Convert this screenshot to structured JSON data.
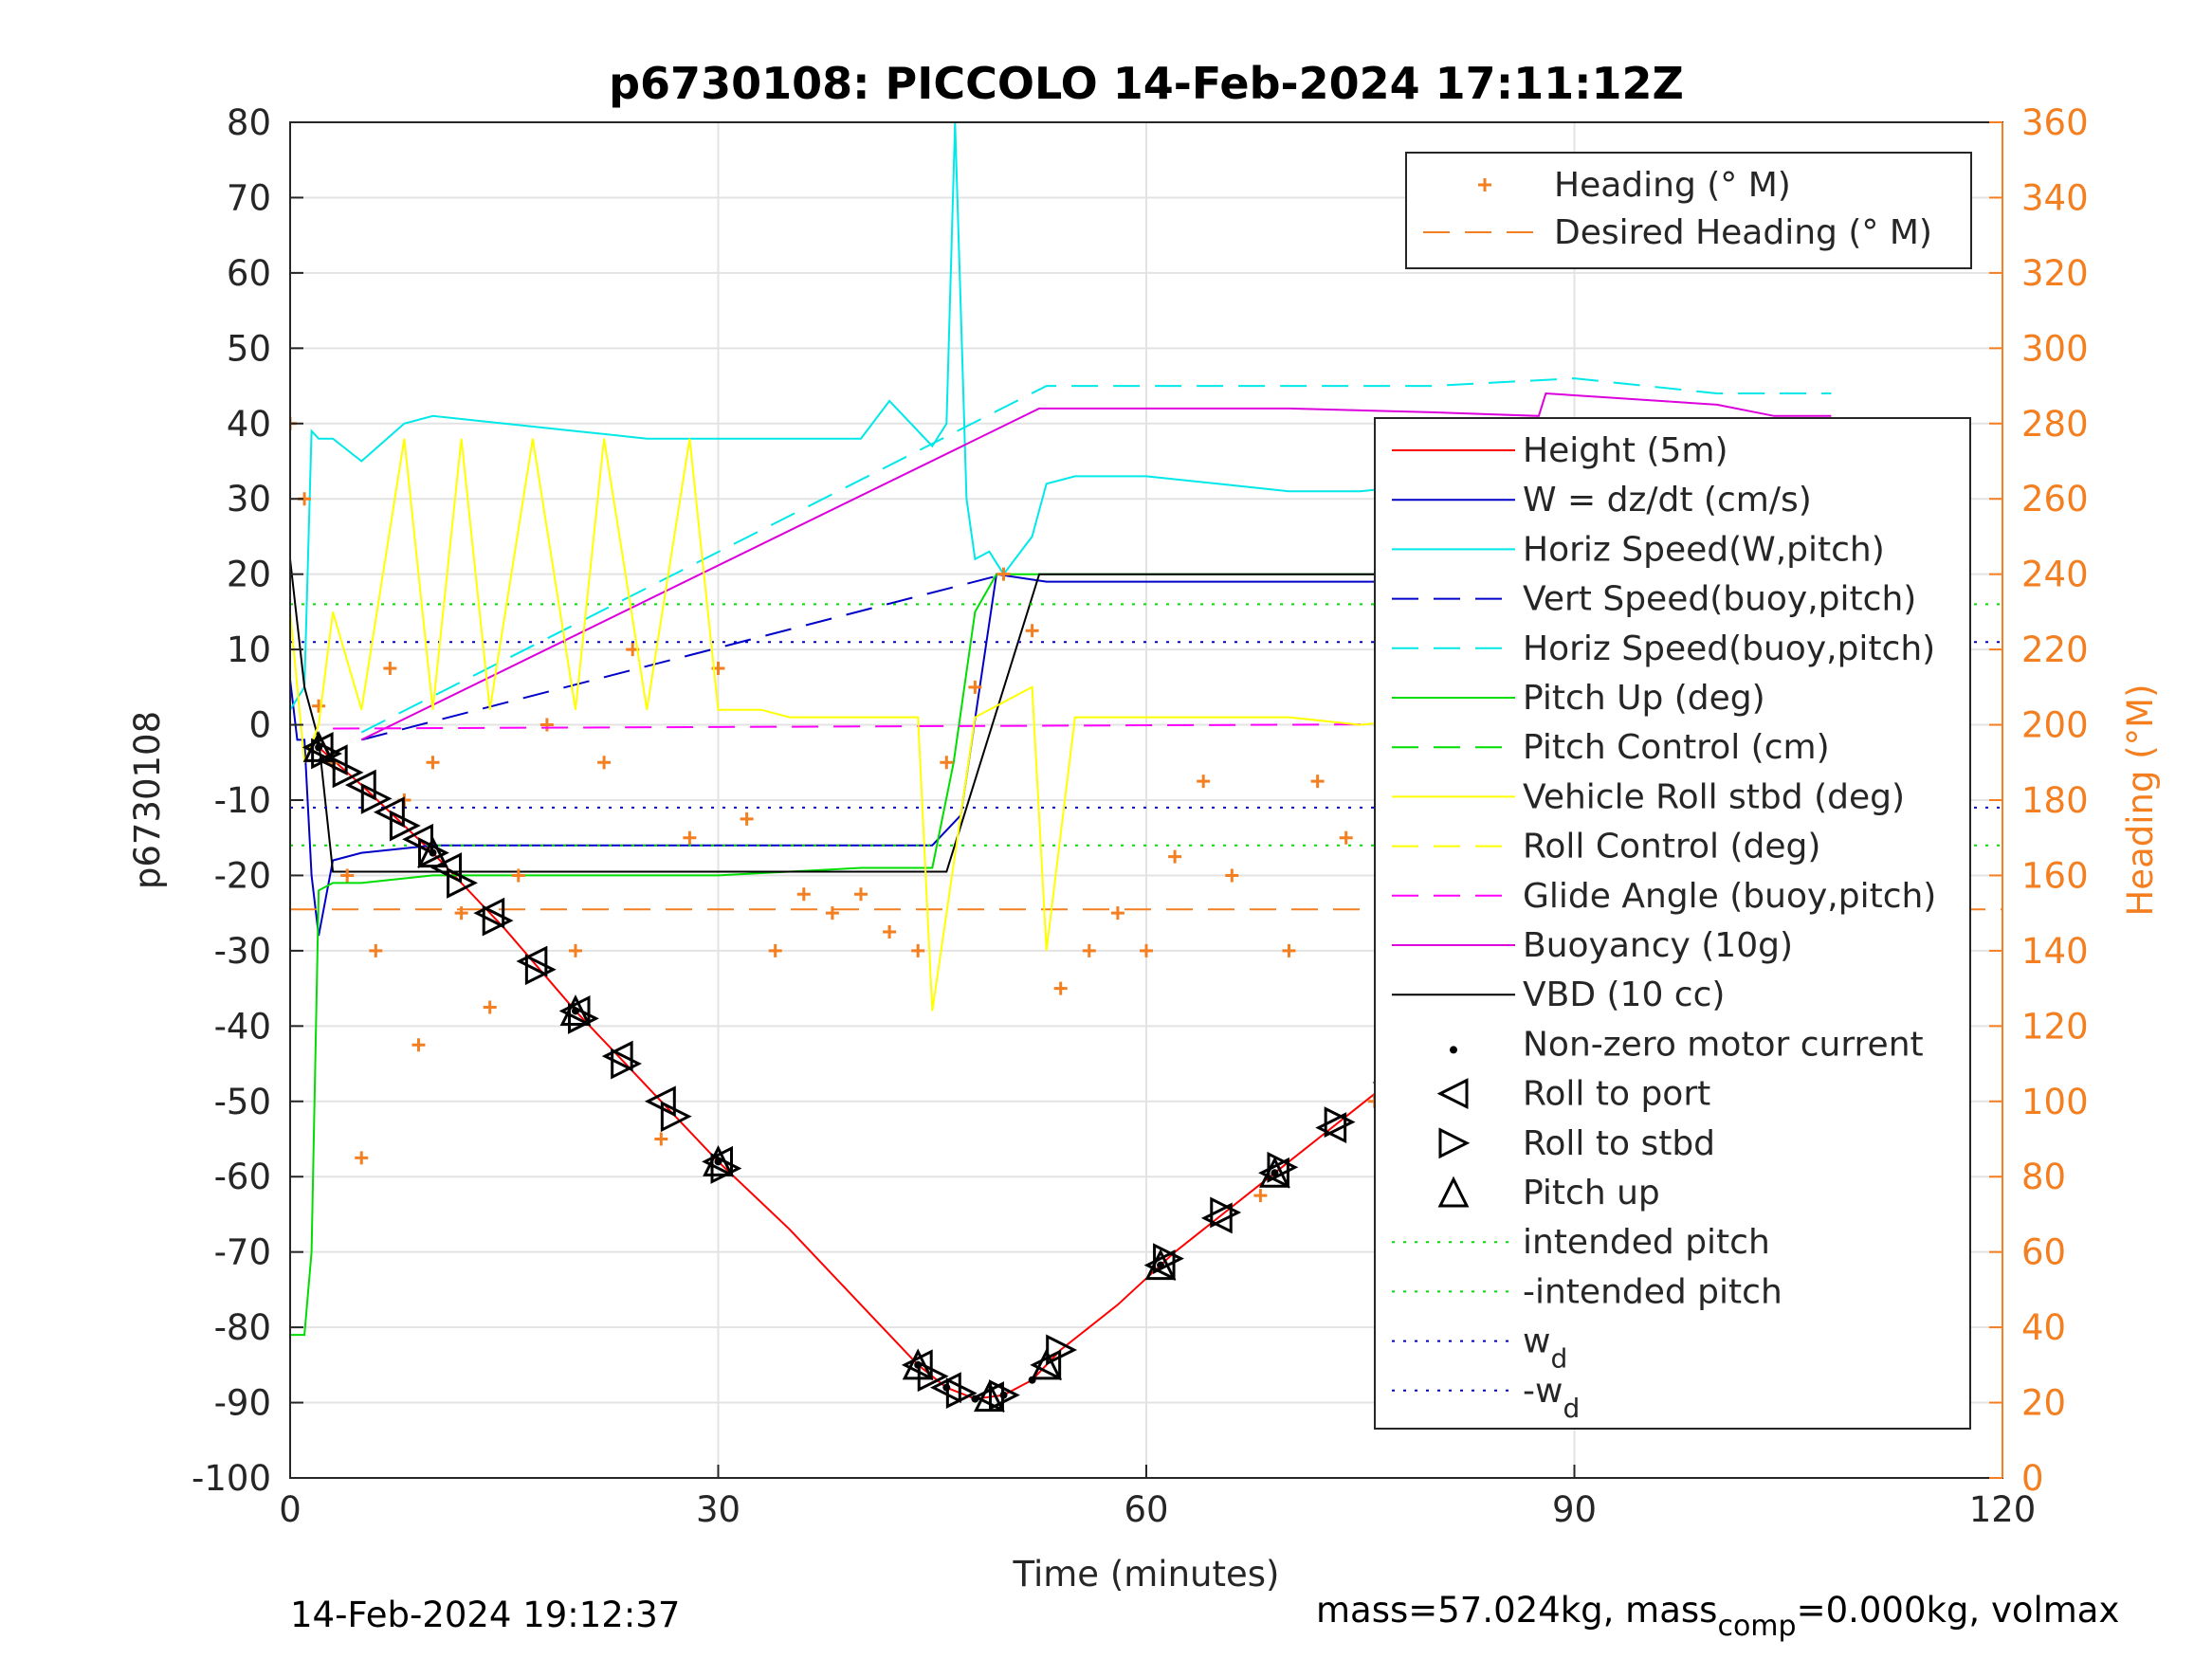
{
  "chart_data": {
    "type": "line",
    "title": "p6730108: PICCOLO 14-Feb-2024 17:11:12Z",
    "xlabel": "Time (minutes)",
    "ylabel": "p6730108",
    "ylabel_right": "Heading (°M)",
    "xlim": [
      0,
      120
    ],
    "ylim": [
      -100,
      80
    ],
    "ylim_right": [
      0,
      360
    ],
    "x_ticks": [
      "0",
      "30",
      "60",
      "90",
      "120"
    ],
    "y_ticks": [
      "80",
      "70",
      "60",
      "50",
      "40",
      "30",
      "20",
      "10",
      "0",
      "-10",
      "-20",
      "-30",
      "-40",
      "-50",
      "-60",
      "-70",
      "-80",
      "-90",
      "-100"
    ],
    "y_ticks_right": [
      "360",
      "340",
      "320",
      "300",
      "280",
      "260",
      "240",
      "220",
      "200",
      "180",
      "160",
      "140",
      "120",
      "100",
      "80",
      "60",
      "40",
      "20",
      "0"
    ],
    "grid": true,
    "colors": {
      "height": "#ff0000",
      "w": "#0000c8",
      "horiz_speed_w": "#00e8e8",
      "vert_speed_buoy": "#0000c8",
      "horiz_speed_buoy": "#00e8e8",
      "pitch": "#00dd00",
      "roll": "#ffff00",
      "glide": "#ff00ff",
      "buoyancy": "#dd00dd",
      "vbd": "#000000",
      "heading": "#f47f20",
      "intended_pitch": "#00dd00",
      "wd": "#0000c8"
    },
    "legend_top": {
      "placement": "top-right",
      "entries": [
        "Heading (° M)",
        "Desired Heading (° M)"
      ]
    },
    "legend_main": {
      "placement": "right",
      "entries": [
        "Height (5m)",
        "W = dz/dt (cm/s)",
        "Horiz Speed(W,pitch)",
        "Vert Speed(buoy,pitch)",
        "Horiz Speed(buoy,pitch)",
        "Pitch Up (deg)",
        "Pitch Control (cm)",
        "Vehicle Roll stbd (deg)",
        "Roll Control (deg)",
        "Glide Angle (buoy,pitch)",
        "Buoyancy (10g)",
        "VBD (10 cc)",
        "Non-zero motor current",
        "Roll to port",
        "Roll to stbd",
        "Pitch up",
        "intended pitch",
        "-intended pitch",
        "w",
        "-w"
      ],
      "subscript": "d"
    },
    "series": [
      {
        "name": "Height (5m)",
        "x": [
          2,
          5,
          10,
          15,
          20,
          25,
          30,
          35,
          40,
          44,
          46,
          48,
          50,
          52,
          54,
          58,
          62,
          66,
          70,
          74,
          78,
          82,
          86,
          90,
          94,
          98,
          102,
          106,
          108.5
        ],
        "y": [
          -3,
          -8,
          -17,
          -27,
          -38,
          -48,
          -58,
          -67,
          -77,
          -85,
          -88,
          -89.5,
          -89,
          -87,
          -83,
          -77,
          -70,
          -64,
          -58,
          -52,
          -46,
          -40,
          -34,
          -29,
          -24,
          -18,
          -12,
          -5,
          -1
        ]
      },
      {
        "name": "W = dz/dt (cm/s)",
        "x": [
          0,
          0.5,
          1,
          1.5,
          2,
          3,
          5,
          10,
          20,
          30,
          40,
          45,
          47,
          49.5,
          53,
          60,
          70,
          80,
          88,
          95,
          100,
          108
        ],
        "y": [
          6,
          -2,
          -2,
          -20,
          -28,
          -18,
          -17,
          -16,
          -16,
          -16,
          -16,
          -16,
          -12,
          20,
          19,
          19,
          19,
          19,
          18,
          18,
          18,
          18
        ]
      },
      {
        "name": "Horiz Speed(W,pitch)",
        "x": [
          0,
          1,
          1.5,
          2,
          3,
          5,
          8,
          10,
          15,
          20,
          25,
          30,
          35,
          40,
          42,
          45,
          46,
          46.6,
          47,
          47.4,
          48,
          49,
          50,
          52,
          53,
          55,
          60,
          65,
          70,
          75,
          80,
          85,
          90,
          95,
          100,
          105,
          108
        ],
        "y": [
          2,
          5,
          39,
          38,
          38,
          35,
          40,
          41,
          40,
          39,
          38,
          38,
          38,
          38,
          43,
          37,
          40,
          80,
          55,
          30,
          22,
          23,
          20,
          25,
          32,
          33,
          33,
          32,
          31,
          31,
          32,
          30,
          29,
          29,
          28,
          28,
          28
        ]
      },
      {
        "name": "Vert Speed(buoy,pitch)",
        "x": [
          5,
          50
        ],
        "y": [
          -2,
          20
        ]
      },
      {
        "name": "Horiz Speed(buoy,pitch)",
        "x": [
          5,
          53,
          60,
          70,
          80,
          90,
          100,
          108
        ],
        "y": [
          -1,
          45,
          45,
          45,
          45,
          46,
          44,
          44
        ]
      },
      {
        "name": "Pitch Up (deg)",
        "x": [
          0,
          1,
          1.5,
          2,
          3,
          5,
          10,
          20,
          30,
          40,
          45,
          46.5,
          48,
          49.5,
          52,
          60,
          70,
          80,
          90,
          100,
          108
        ],
        "y": [
          -81,
          -81,
          -70,
          -22,
          -21,
          -21,
          -20,
          -20,
          -20,
          -19,
          -19,
          -5,
          15,
          20,
          20,
          20,
          20,
          20,
          20,
          20,
          20
        ]
      },
      {
        "name": "Buoyancy (10g)",
        "x": [
          5,
          52.5,
          60,
          70,
          80,
          87.5,
          88,
          100,
          104,
          108
        ],
        "y": [
          -2,
          42,
          42,
          42,
          41.5,
          41,
          44,
          42.5,
          41,
          41
        ]
      },
      {
        "name": "VBD (10 cc)",
        "x": [
          0,
          1,
          2,
          3,
          10,
          20,
          30,
          40,
          46,
          52.5,
          60,
          70,
          80,
          90,
          100,
          108
        ],
        "y": [
          22,
          5,
          -2,
          -19.5,
          -19.5,
          -19.5,
          -19.5,
          -19.5,
          -19.5,
          20,
          20,
          20,
          20,
          20,
          20,
          20
        ]
      },
      {
        "name": "Heading (° M)",
        "x": [
          0,
          1,
          2,
          3,
          4,
          5,
          6,
          7,
          8,
          9,
          10,
          12,
          14,
          16,
          18,
          20,
          22,
          24,
          26,
          28,
          30,
          32,
          34,
          36,
          38,
          40,
          42,
          44,
          46,
          48,
          50,
          52,
          54,
          56,
          58,
          60,
          62,
          64,
          66,
          68,
          70,
          72,
          74,
          76,
          78,
          80,
          82,
          84,
          86,
          88,
          90,
          92,
          94,
          96,
          98,
          100,
          102,
          104,
          106,
          108
        ],
        "y": [
          280,
          260,
          205,
          190,
          160,
          85,
          140,
          215,
          180,
          115,
          190,
          150,
          125,
          160,
          200,
          140,
          190,
          220,
          90,
          170,
          215,
          175,
          140,
          155,
          150,
          155,
          145,
          140,
          190,
          210,
          240,
          225,
          130,
          140,
          150,
          140,
          165,
          185,
          160,
          75,
          140,
          185,
          170,
          100,
          160,
          125,
          160,
          140,
          120,
          190,
          180,
          150,
          130,
          170,
          195,
          165,
          180,
          95,
          140,
          130
        ]
      },
      {
        "name": "Desired Heading (° M)",
        "x": [
          0,
          120
        ],
        "y": [
          151,
          151
        ]
      },
      {
        "name": "Glide Angle (buoy,pitch)",
        "x": [
          3,
          108
        ],
        "y": [
          -0.5,
          0.3
        ]
      },
      {
        "name": "intended pitch",
        "x": [
          0,
          120
        ],
        "y": [
          16,
          16
        ]
      },
      {
        "name": "-intended pitch",
        "x": [
          0,
          120
        ],
        "y": [
          -16,
          -16
        ]
      },
      {
        "name": "w",
        "x": [
          0,
          120
        ],
        "y": [
          11,
          11
        ]
      },
      {
        "name": "-w",
        "x": [
          0,
          120
        ],
        "y": [
          -11,
          -11
        ]
      },
      {
        "name": "Vehicle Roll stbd (deg)",
        "x": [
          0,
          1,
          2,
          3,
          5,
          8,
          10,
          12,
          14,
          17,
          20,
          22,
          25,
          28,
          30,
          33,
          35,
          40,
          44,
          45,
          48,
          52,
          53,
          55,
          60,
          65,
          70,
          75,
          80,
          85,
          90,
          95,
          100,
          105,
          108
        ],
        "y": [
          15,
          -5,
          0,
          15,
          2,
          38,
          2,
          38,
          2,
          38,
          2,
          38,
          2,
          38,
          2,
          2,
          1,
          1,
          1,
          -38,
          1,
          5,
          -30,
          1,
          1,
          1,
          1,
          0,
          1,
          1,
          0,
          1,
          0,
          38,
          0
        ]
      }
    ],
    "markers": {
      "roll_to_port_x": [
        2,
        3,
        5,
        7,
        9,
        11,
        14,
        17,
        20,
        23,
        26,
        30,
        44,
        46,
        49,
        53,
        61,
        65,
        69,
        73,
        77,
        82,
        90,
        93,
        96,
        99,
        102,
        105,
        107
      ],
      "roll_to_stbd_x": [
        2.5,
        4,
        6,
        8,
        10,
        12,
        14.5,
        17.5,
        20.5,
        23.5,
        27,
        30.5,
        45,
        47,
        50,
        54,
        61.5,
        65.5,
        69.5,
        73.5,
        78,
        82.5,
        91,
        94,
        97,
        100,
        103,
        106,
        108.5
      ],
      "pitch_up_x": [
        2,
        10,
        20,
        30,
        44,
        49,
        53,
        61,
        69,
        77,
        82,
        90,
        100,
        106
      ],
      "motor_x": [
        2,
        10,
        20,
        30,
        44,
        46,
        48,
        50,
        52,
        61,
        69,
        77,
        82,
        88,
        90,
        100,
        106
      ]
    }
  },
  "footer": {
    "timestamp": "14-Feb-2024 19:12:37",
    "mass_text_a": "mass=57.024kg, mass",
    "mass_sub": "comp",
    "mass_text_b": "=0.000kg, volmax"
  }
}
